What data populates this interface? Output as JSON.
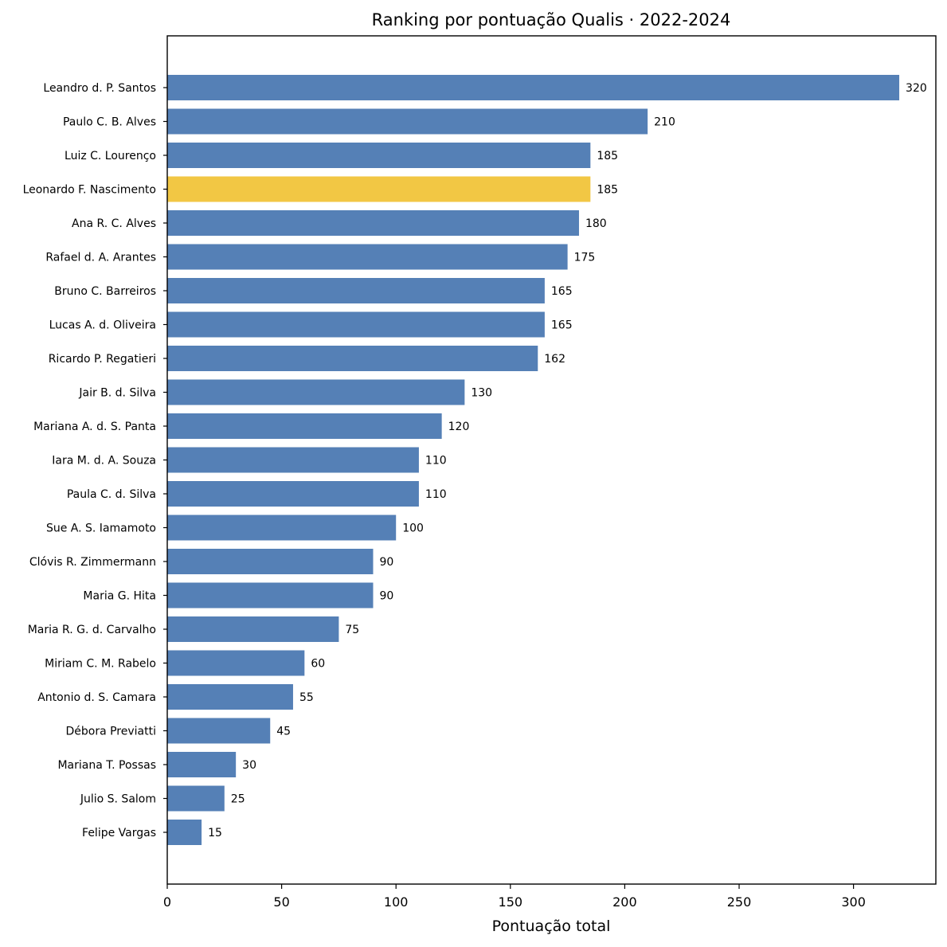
{
  "chart_data": {
    "type": "bar",
    "orientation": "horizontal",
    "title": "Ranking por pontuação Qualis · 2022-2024",
    "xlabel": "Pontuação total",
    "ylabel": "",
    "xlim": [
      0,
      336
    ],
    "x_ticks": [
      0,
      50,
      100,
      150,
      200,
      250,
      300
    ],
    "grid": false,
    "legend": "none",
    "bar_color": "#5580b6",
    "highlight_color": "#f2c744",
    "categories": [
      "Leandro d. P. Santos",
      "Paulo C. B. Alves",
      "Luiz C. Lourenço",
      "Leonardo F. Nascimento",
      "Ana R. C. Alves",
      "Rafael d. A. Arantes",
      "Bruno C. Barreiros",
      "Lucas A. d. Oliveira",
      "Ricardo P. Regatieri",
      "Jair B. d. Silva",
      "Mariana A. d. S. Panta",
      "Iara M. d. A. Souza",
      "Paula C. d. Silva",
      "Sue A. S. Iamamoto",
      "Clóvis R. Zimmermann",
      "Maria G. Hita",
      "Maria R. G. d. Carvalho",
      "Miriam C. M. Rabelo",
      "Antonio d. S. Camara",
      "Débora Previatti",
      "Mariana T. Possas",
      "Julio S. Salom",
      "Felipe Vargas"
    ],
    "values": [
      320,
      210,
      185,
      185,
      180,
      175,
      165,
      165,
      162,
      130,
      120,
      110,
      110,
      100,
      90,
      90,
      75,
      60,
      55,
      45,
      30,
      25,
      15
    ],
    "highlighted": [
      "Leonardo F. Nascimento"
    ]
  }
}
